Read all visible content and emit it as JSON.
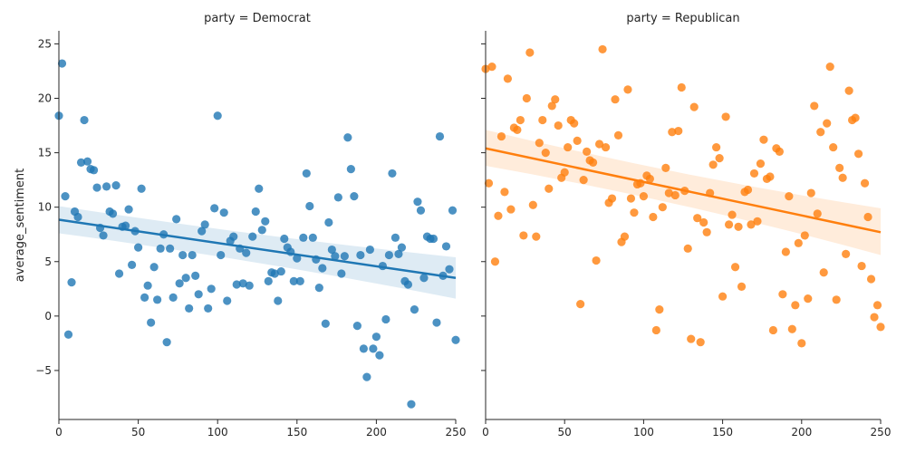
{
  "chart_data": {
    "type": "scatter",
    "ylabel": "average_sentiment",
    "xlabel": "",
    "xlim": [
      0,
      250
    ],
    "ylim": [
      -9.5,
      26.2
    ],
    "xticks": [
      0,
      50,
      100,
      150,
      200,
      250
    ],
    "yticks": [
      -5,
      0,
      5,
      10,
      15,
      20,
      25
    ],
    "facets": [
      {
        "title": "party = Democrat",
        "color": "#1f77b4",
        "fit": {
          "x0": 0,
          "y0": 8.85,
          "x1": 250,
          "y1": 3.5,
          "ci_lower_start": 7.6,
          "ci_upper_start": 10.1,
          "ci_lower_mid": 5.7,
          "ci_upper_mid": 6.8,
          "ci_lower_end": 1.6,
          "ci_upper_end": 5.4
        },
        "points": [
          [
            0,
            18.4
          ],
          [
            2,
            23.2
          ],
          [
            4,
            11
          ],
          [
            6,
            -1.7
          ],
          [
            8,
            3.1
          ],
          [
            10,
            9.6
          ],
          [
            12,
            9.1
          ],
          [
            14,
            14.1
          ],
          [
            16,
            18
          ],
          [
            18,
            14.2
          ],
          [
            20,
            13.5
          ],
          [
            22,
            13.4
          ],
          [
            24,
            11.8
          ],
          [
            26,
            8.1
          ],
          [
            28,
            7.4
          ],
          [
            30,
            11.9
          ],
          [
            32,
            9.6
          ],
          [
            34,
            9.4
          ],
          [
            36,
            12
          ],
          [
            38,
            3.9
          ],
          [
            40,
            8.2
          ],
          [
            42,
            8.3
          ],
          [
            44,
            9.8
          ],
          [
            46,
            4.7
          ],
          [
            48,
            7.8
          ],
          [
            50,
            6.3
          ],
          [
            52,
            11.7
          ],
          [
            54,
            1.7
          ],
          [
            56,
            2.8
          ],
          [
            58,
            -0.6
          ],
          [
            60,
            4.5
          ],
          [
            62,
            1.5
          ],
          [
            64,
            6.2
          ],
          [
            66,
            7.5
          ],
          [
            68,
            -2.4
          ],
          [
            70,
            6.2
          ],
          [
            72,
            1.7
          ],
          [
            74,
            8.9
          ],
          [
            76,
            3
          ],
          [
            78,
            5.6
          ],
          [
            80,
            3.5
          ],
          [
            82,
            0.7
          ],
          [
            84,
            5.6
          ],
          [
            86,
            3.7
          ],
          [
            88,
            2
          ],
          [
            90,
            7.8
          ],
          [
            92,
            8.4
          ],
          [
            94,
            0.7
          ],
          [
            96,
            2.5
          ],
          [
            98,
            9.9
          ],
          [
            100,
            18.4
          ],
          [
            102,
            5.6
          ],
          [
            104,
            9.5
          ],
          [
            106,
            1.4
          ],
          [
            108,
            6.9
          ],
          [
            110,
            7.3
          ],
          [
            112,
            2.9
          ],
          [
            114,
            6.2
          ],
          [
            116,
            3
          ],
          [
            118,
            5.8
          ],
          [
            120,
            2.8
          ],
          [
            122,
            7.3
          ],
          [
            124,
            9.6
          ],
          [
            126,
            11.7
          ],
          [
            128,
            7.9
          ],
          [
            130,
            8.7
          ],
          [
            132,
            3.2
          ],
          [
            134,
            4
          ],
          [
            136,
            3.9
          ],
          [
            138,
            1.4
          ],
          [
            140,
            4.1
          ],
          [
            142,
            7.1
          ],
          [
            144,
            6.3
          ],
          [
            146,
            5.9
          ],
          [
            148,
            3.2
          ],
          [
            150,
            5.3
          ],
          [
            152,
            3.2
          ],
          [
            154,
            7.2
          ],
          [
            156,
            13.1
          ],
          [
            158,
            10.1
          ],
          [
            160,
            7.2
          ],
          [
            162,
            5.2
          ],
          [
            164,
            2.6
          ],
          [
            166,
            4.4
          ],
          [
            168,
            -0.7
          ],
          [
            170,
            8.6
          ],
          [
            172,
            6.1
          ],
          [
            174,
            5.5
          ],
          [
            176,
            10.9
          ],
          [
            178,
            3.9
          ],
          [
            180,
            5.5
          ],
          [
            182,
            16.4
          ],
          [
            184,
            13.5
          ],
          [
            186,
            11
          ],
          [
            188,
            -0.9
          ],
          [
            190,
            5.6
          ],
          [
            192,
            -3
          ],
          [
            194,
            -5.6
          ],
          [
            196,
            6.1
          ],
          [
            198,
            -3
          ],
          [
            200,
            -1.9
          ],
          [
            202,
            -3.6
          ],
          [
            204,
            4.6
          ],
          [
            206,
            -0.3
          ],
          [
            208,
            5.6
          ],
          [
            210,
            13.1
          ],
          [
            212,
            7.2
          ],
          [
            214,
            5.7
          ],
          [
            216,
            6.3
          ],
          [
            218,
            3.2
          ],
          [
            220,
            2.9
          ],
          [
            222,
            -8.1
          ],
          [
            224,
            0.6
          ],
          [
            226,
            10.5
          ],
          [
            228,
            9.7
          ],
          [
            230,
            3.5
          ],
          [
            232,
            7.3
          ],
          [
            234,
            7.1
          ],
          [
            236,
            7.1
          ],
          [
            238,
            -0.6
          ],
          [
            240,
            16.5
          ],
          [
            242,
            3.7
          ],
          [
            244,
            6.4
          ],
          [
            246,
            4.3
          ],
          [
            248,
            9.7
          ],
          [
            250,
            -2.2
          ]
        ]
      },
      {
        "title": "party = Republican",
        "color": "#ff7f0e",
        "fit": {
          "x0": 0,
          "y0": 15.4,
          "x1": 250,
          "y1": 7.7,
          "ci_lower_start": 13.8,
          "ci_upper_start": 17.1,
          "ci_lower_mid": 11.0,
          "ci_upper_mid": 12.3,
          "ci_lower_end": 5.6,
          "ci_upper_end": 9.9
        },
        "points": [
          [
            0,
            22.7
          ],
          [
            2,
            12.2
          ],
          [
            4,
            22.9
          ],
          [
            6,
            5
          ],
          [
            8,
            9.2
          ],
          [
            10,
            16.5
          ],
          [
            12,
            11.4
          ],
          [
            14,
            21.8
          ],
          [
            16,
            9.8
          ],
          [
            18,
            17.3
          ],
          [
            20,
            17.1
          ],
          [
            22,
            18
          ],
          [
            24,
            7.4
          ],
          [
            26,
            20
          ],
          [
            28,
            24.2
          ],
          [
            30,
            10.2
          ],
          [
            32,
            7.3
          ],
          [
            34,
            15.9
          ],
          [
            36,
            18
          ],
          [
            38,
            15
          ],
          [
            40,
            11.7
          ],
          [
            42,
            19.3
          ],
          [
            44,
            19.9
          ],
          [
            46,
            17.5
          ],
          [
            48,
            12.7
          ],
          [
            50,
            13.2
          ],
          [
            52,
            15.5
          ],
          [
            54,
            18
          ],
          [
            56,
            17.7
          ],
          [
            58,
            16.1
          ],
          [
            60,
            1.1
          ],
          [
            62,
            12.5
          ],
          [
            64,
            15.1
          ],
          [
            66,
            14.3
          ],
          [
            68,
            14.1
          ],
          [
            70,
            5.1
          ],
          [
            72,
            15.8
          ],
          [
            74,
            24.5
          ],
          [
            76,
            15.5
          ],
          [
            78,
            10.4
          ],
          [
            80,
            10.8
          ],
          [
            82,
            19.9
          ],
          [
            84,
            16.6
          ],
          [
            86,
            6.8
          ],
          [
            88,
            7.3
          ],
          [
            90,
            20.8
          ],
          [
            92,
            10.8
          ],
          [
            94,
            9.5
          ],
          [
            96,
            12.1
          ],
          [
            98,
            12.2
          ],
          [
            100,
            11
          ],
          [
            102,
            12.9
          ],
          [
            104,
            12.6
          ],
          [
            106,
            9.1
          ],
          [
            108,
            -1.3
          ],
          [
            110,
            0.6
          ],
          [
            112,
            10
          ],
          [
            114,
            13.6
          ],
          [
            116,
            11.3
          ],
          [
            118,
            16.9
          ],
          [
            120,
            11.1
          ],
          [
            122,
            17
          ],
          [
            124,
            21
          ],
          [
            126,
            11.5
          ],
          [
            128,
            6.2
          ],
          [
            130,
            -2.1
          ],
          [
            132,
            19.2
          ],
          [
            134,
            9
          ],
          [
            136,
            -2.4
          ],
          [
            138,
            8.6
          ],
          [
            140,
            7.7
          ],
          [
            142,
            11.3
          ],
          [
            144,
            13.9
          ],
          [
            146,
            15.5
          ],
          [
            148,
            14.5
          ],
          [
            150,
            1.8
          ],
          [
            152,
            18.3
          ],
          [
            154,
            8.4
          ],
          [
            156,
            9.3
          ],
          [
            158,
            4.5
          ],
          [
            160,
            8.2
          ],
          [
            162,
            2.7
          ],
          [
            164,
            11.4
          ],
          [
            166,
            11.6
          ],
          [
            168,
            8.4
          ],
          [
            170,
            13.1
          ],
          [
            172,
            8.7
          ],
          [
            174,
            14
          ],
          [
            176,
            16.2
          ],
          [
            178,
            12.6
          ],
          [
            180,
            12.8
          ],
          [
            182,
            -1.3
          ],
          [
            184,
            15.4
          ],
          [
            186,
            15.1
          ],
          [
            188,
            2
          ],
          [
            190,
            5.9
          ],
          [
            192,
            11
          ],
          [
            194,
            -1.2
          ],
          [
            196,
            1
          ],
          [
            198,
            6.7
          ],
          [
            200,
            -2.5
          ],
          [
            202,
            7.4
          ],
          [
            204,
            1.6
          ],
          [
            206,
            11.3
          ],
          [
            208,
            19.3
          ],
          [
            210,
            9.4
          ],
          [
            212,
            16.9
          ],
          [
            214,
            4
          ],
          [
            216,
            17.7
          ],
          [
            218,
            22.9
          ],
          [
            220,
            15.5
          ],
          [
            222,
            1.5
          ],
          [
            224,
            13.6
          ],
          [
            226,
            12.7
          ],
          [
            228,
            5.7
          ],
          [
            230,
            20.7
          ],
          [
            232,
            18
          ],
          [
            234,
            18.2
          ],
          [
            236,
            14.9
          ],
          [
            238,
            4.6
          ],
          [
            240,
            12.2
          ],
          [
            242,
            9.1
          ],
          [
            244,
            3.4
          ],
          [
            246,
            -0.1
          ],
          [
            248,
            1
          ],
          [
            250,
            -1
          ]
        ]
      }
    ]
  }
}
